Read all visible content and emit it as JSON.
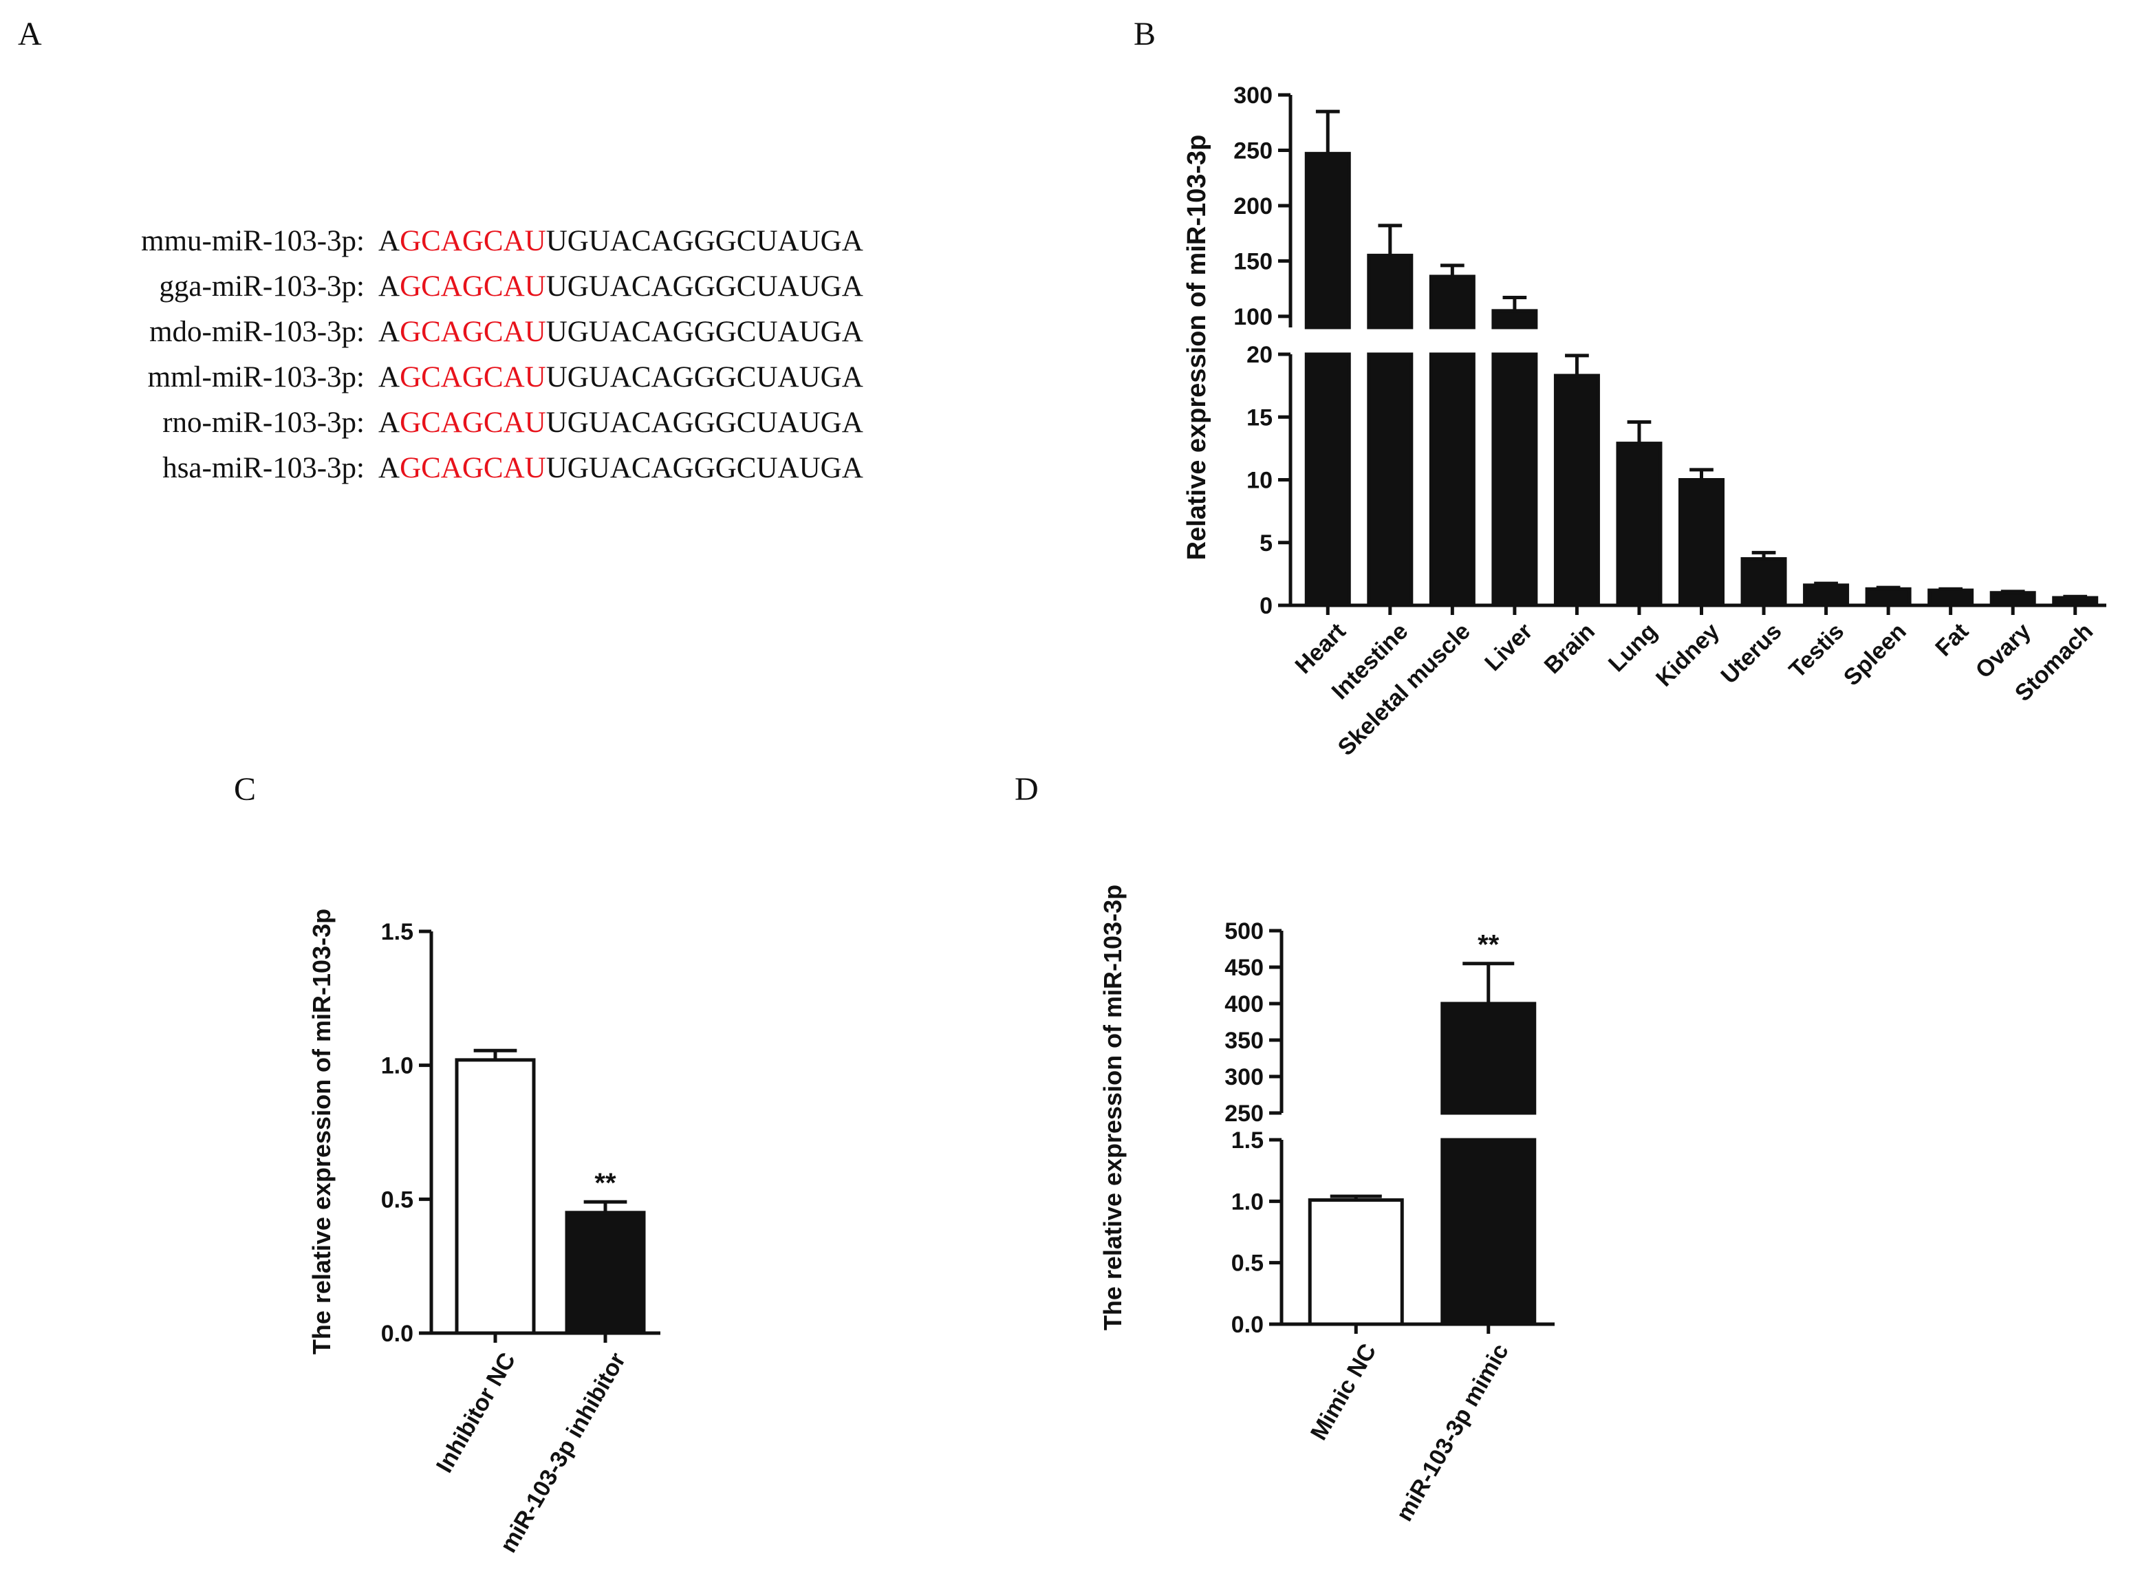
{
  "panels": {
    "a": "A",
    "b": "B",
    "c": "C",
    "d": "D"
  },
  "sequences": [
    {
      "name": "mmu-miR-103-3p:",
      "first": "A",
      "seed": "GCAGCAU",
      "rest": "UGUACAGGGCUAUGA"
    },
    {
      "name": "gga-miR-103-3p:",
      "first": "A",
      "seed": "GCAGCAU",
      "rest": "UGUACAGGGCUAUGA"
    },
    {
      "name": "mdo-miR-103-3p:",
      "first": "A",
      "seed": "GCAGCAU",
      "rest": "UGUACAGGGCUAUGA"
    },
    {
      "name": "mml-miR-103-3p:",
      "first": "A",
      "seed": "GCAGCAU",
      "rest": "UGUACAGGGCUAUGA"
    },
    {
      "name": "rno-miR-103-3p:",
      "first": "A",
      "seed": "GCAGCAU",
      "rest": "UGUACAGGGCUAUGA"
    },
    {
      "name": "hsa-miR-103-3p:",
      "first": "A",
      "seed": "GCAGCAU",
      "rest": "UGUACAGGGCUAUGA"
    }
  ],
  "colors": {
    "seed": "#e8121b",
    "bar_dark": "#111111",
    "bar_light": "#ffffff"
  },
  "chart_data": [
    {
      "id": "B",
      "type": "bar",
      "title": "",
      "ylabel": "Relative expression of miR-103-3p",
      "xlabel": "",
      "categories": [
        "Heart",
        "Intestine",
        "Skeletal muscle",
        "Liver",
        "Brain",
        "Lung",
        "Kidney",
        "Uterus",
        "Testis",
        "Spleen",
        "Fat",
        "Ovary",
        "Stomach"
      ],
      "values": [
        247,
        155,
        136,
        105,
        18.3,
        12.9,
        10.0,
        3.7,
        1.6,
        1.3,
        1.2,
        1.0,
        0.6
      ],
      "errors": [
        38,
        27,
        10,
        12,
        1.6,
        1.7,
        0.8,
        0.5,
        0.15,
        0.12,
        0.1,
        0.1,
        0.1
      ],
      "fills": [
        "#111111",
        "#111111",
        "#111111",
        "#111111",
        "#111111",
        "#111111",
        "#111111",
        "#111111",
        "#111111",
        "#111111",
        "#111111",
        "#111111",
        "#111111"
      ],
      "segments": [
        {
          "range": [
            0,
            20
          ],
          "ticks": [
            0,
            5,
            10,
            15,
            20
          ]
        },
        {
          "range": [
            90,
            300
          ],
          "ticks": [
            100,
            150,
            200,
            250,
            300
          ]
        }
      ],
      "annotations": []
    },
    {
      "id": "C",
      "type": "bar",
      "title": "",
      "ylabel": "The relative expression of miR-103-3p",
      "xlabel": "",
      "categories": [
        "Inhibitor NC",
        "miR-103-3p inhibitor"
      ],
      "values": [
        1.02,
        0.45
      ],
      "errors": [
        0.035,
        0.04
      ],
      "fills": [
        "#ffffff",
        "#111111"
      ],
      "segments": [
        {
          "range": [
            0,
            1.5
          ],
          "ticks": [
            0.0,
            0.5,
            1.0,
            1.5
          ]
        }
      ],
      "annotations": [
        "",
        "**"
      ]
    },
    {
      "id": "D",
      "type": "bar",
      "title": "",
      "ylabel": "The relative expression of miR-103-3p",
      "xlabel": "",
      "categories": [
        "Mimic NC",
        "miR-103-3p mimic"
      ],
      "values": [
        1.01,
        400
      ],
      "errors": [
        0.03,
        55
      ],
      "fills": [
        "#ffffff",
        "#111111"
      ],
      "segments": [
        {
          "range": [
            0,
            1.5
          ],
          "ticks": [
            0.0,
            0.5,
            1.0,
            1.5
          ]
        },
        {
          "range": [
            250,
            500
          ],
          "ticks": [
            250,
            300,
            350,
            400,
            450,
            500
          ]
        }
      ],
      "annotations": [
        "",
        "**"
      ]
    }
  ]
}
